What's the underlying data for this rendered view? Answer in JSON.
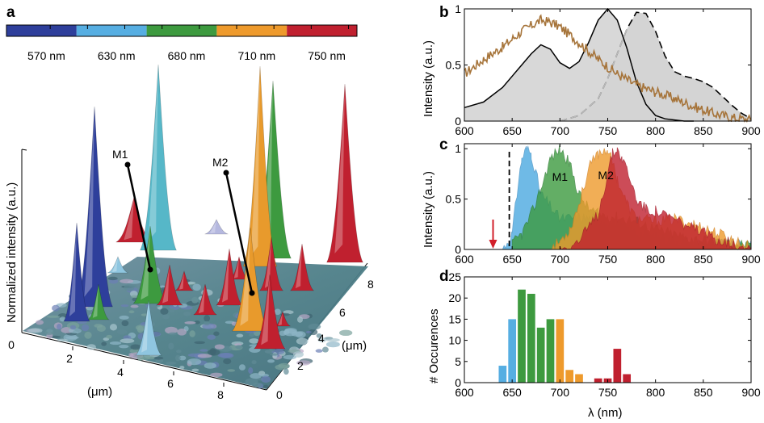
{
  "chart_data": [
    {
      "panel": "a",
      "type": "surface",
      "colorbar": {
        "labels": [
          "570 nm",
          "630 nm",
          "680 nm",
          "710 nm",
          "750 nm"
        ],
        "colors": [
          "#2e3f9b",
          "#56aee2",
          "#3d9a3f",
          "#ee9a2c",
          "#c0202f"
        ]
      },
      "zlabel": "Normalized intensity (a.u.)",
      "xlabel": "(μm)",
      "ylabel": "(μm)",
      "xticks": [
        "0",
        "2",
        "4",
        "6",
        "8"
      ],
      "yticks": [
        "0",
        "2",
        "4",
        "6",
        "8"
      ],
      "annotations": [
        "M1",
        "M2"
      ]
    },
    {
      "panel": "b",
      "type": "line",
      "xlabel": "",
      "ylabel": "Intensity (a.u.)",
      "xlim": [
        600,
        900
      ],
      "ylim": [
        0,
        1
      ],
      "xticks": [
        "600",
        "650",
        "700",
        "750",
        "800",
        "850",
        "900"
      ],
      "yticks": [
        "0",
        "0.5",
        "1"
      ],
      "series": [
        {
          "style": "brown-noisy",
          "x": [
            600,
            620,
            640,
            660,
            680,
            690,
            700,
            720,
            740,
            760,
            780,
            800,
            820,
            840,
            860,
            880,
            900
          ],
          "y": [
            0.42,
            0.55,
            0.66,
            0.8,
            0.9,
            0.88,
            0.84,
            0.7,
            0.55,
            0.42,
            0.32,
            0.26,
            0.2,
            0.13,
            0.07,
            0.03,
            0.01
          ]
        },
        {
          "style": "black-solid",
          "x": [
            600,
            620,
            640,
            660,
            670,
            680,
            690,
            700,
            710,
            720,
            730,
            740,
            750,
            760,
            770,
            780,
            790,
            800,
            810,
            820,
            830,
            840
          ],
          "y": [
            0.12,
            0.17,
            0.3,
            0.5,
            0.6,
            0.68,
            0.64,
            0.52,
            0.47,
            0.53,
            0.7,
            0.9,
            1.0,
            0.9,
            0.65,
            0.35,
            0.15,
            0.05,
            0.02,
            0.01,
            0.0,
            0.0
          ]
        },
        {
          "style": "dashed-filled",
          "x": [
            700,
            720,
            740,
            750,
            760,
            770,
            780,
            790,
            800,
            810,
            820,
            830,
            840,
            850,
            860,
            870,
            880,
            890,
            900
          ],
          "y": [
            0.0,
            0.05,
            0.2,
            0.38,
            0.6,
            0.82,
            0.97,
            0.96,
            0.8,
            0.58,
            0.44,
            0.4,
            0.38,
            0.35,
            0.3,
            0.22,
            0.14,
            0.07,
            0.02
          ]
        }
      ]
    },
    {
      "panel": "c",
      "type": "area",
      "xlabel": "",
      "ylabel": "Intensity (a.u.)",
      "xlim": [
        600,
        900
      ],
      "ylim": [
        0,
        1.05
      ],
      "xticks": [
        "600",
        "650",
        "700",
        "750",
        "800",
        "850",
        "900"
      ],
      "yticks": [
        "0",
        "0.5",
        "1"
      ],
      "annotations": [
        "M1",
        "M2"
      ],
      "dashed_line_x": 647,
      "arrow_x": 630,
      "series": [
        {
          "color": "#56aee2",
          "x": [
            640,
            650,
            655,
            660,
            665,
            670,
            680,
            700,
            720,
            740,
            760,
            780,
            800,
            830,
            860,
            890,
            900
          ],
          "y": [
            0.0,
            0.15,
            0.55,
            0.9,
            1.0,
            0.95,
            0.55,
            0.3,
            0.32,
            0.3,
            0.25,
            0.17,
            0.12,
            0.08,
            0.06,
            0.04,
            0.02
          ]
        },
        {
          "color": "#3d9a3f",
          "x": [
            650,
            660,
            670,
            680,
            690,
            700,
            710,
            720,
            730,
            740,
            760,
            780,
            800,
            830,
            860,
            890,
            900
          ],
          "y": [
            0.05,
            0.15,
            0.35,
            0.6,
            0.9,
            1.0,
            0.85,
            0.55,
            0.4,
            0.35,
            0.32,
            0.28,
            0.2,
            0.12,
            0.08,
            0.05,
            0.02
          ]
        },
        {
          "color": "#ee9a2c",
          "x": [
            690,
            700,
            710,
            720,
            730,
            740,
            750,
            760,
            770,
            780,
            800,
            820,
            840,
            860,
            880,
            900
          ],
          "y": [
            0.0,
            0.08,
            0.2,
            0.45,
            0.8,
            0.95,
            1.0,
            0.7,
            0.45,
            0.3,
            0.28,
            0.3,
            0.25,
            0.18,
            0.1,
            0.02
          ]
        },
        {
          "color": "#c0202f",
          "x": [
            700,
            720,
            740,
            750,
            755,
            760,
            765,
            770,
            780,
            790,
            800,
            820,
            840,
            860,
            880,
            900
          ],
          "y": [
            0.0,
            0.08,
            0.35,
            0.75,
            0.95,
            1.0,
            0.9,
            0.8,
            0.5,
            0.4,
            0.38,
            0.3,
            0.2,
            0.12,
            0.06,
            0.02
          ]
        }
      ]
    },
    {
      "panel": "d",
      "type": "bar",
      "xlabel": "λ (nm)",
      "ylabel": "# Occurences",
      "xlim": [
        600,
        900
      ],
      "ylim": [
        0,
        25
      ],
      "xticks": [
        "600",
        "650",
        "700",
        "750",
        "800",
        "850",
        "900"
      ],
      "yticks": [
        "0",
        "5",
        "10",
        "15",
        "20",
        "25"
      ],
      "bars": [
        {
          "x": 640,
          "value": 4,
          "color": "#56aee2"
        },
        {
          "x": 650,
          "value": 15,
          "color": "#56aee2"
        },
        {
          "x": 660,
          "value": 22,
          "color": "#3d9a3f"
        },
        {
          "x": 670,
          "value": 21,
          "color": "#3d9a3f"
        },
        {
          "x": 680,
          "value": 13,
          "color": "#3d9a3f"
        },
        {
          "x": 690,
          "value": 15,
          "color": "#3d9a3f"
        },
        {
          "x": 700,
          "value": 15,
          "color": "#ee9a2c"
        },
        {
          "x": 710,
          "value": 3,
          "color": "#ee9a2c"
        },
        {
          "x": 720,
          "value": 2,
          "color": "#ee9a2c"
        },
        {
          "x": 740,
          "value": 1,
          "color": "#c0202f"
        },
        {
          "x": 750,
          "value": 1,
          "color": "#c0202f"
        },
        {
          "x": 760,
          "value": 8,
          "color": "#c0202f"
        },
        {
          "x": 770,
          "value": 2,
          "color": "#c0202f"
        }
      ]
    }
  ],
  "letters": {
    "a": "a",
    "b": "b",
    "c": "c",
    "d": "d"
  }
}
